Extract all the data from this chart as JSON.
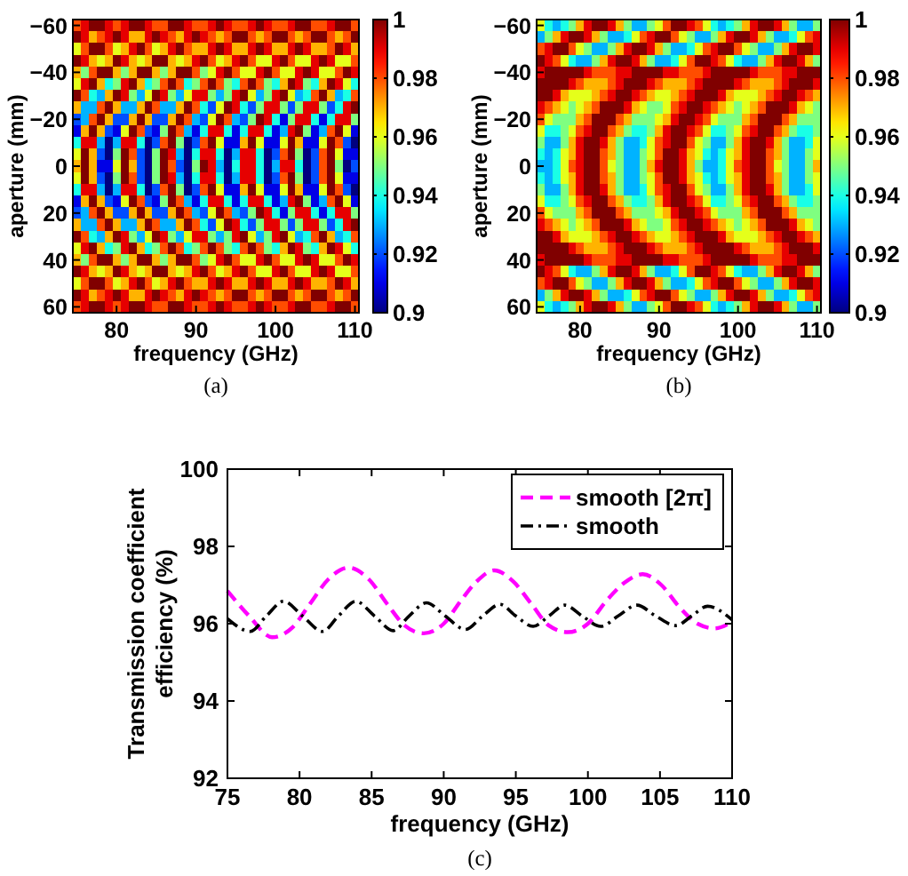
{
  "chart_data": [
    {
      "type": "heatmap",
      "xlabel": "frequency (GHz)",
      "ylabel": "aperture (mm)",
      "annotations": [
        "(a)"
      ],
      "categories": [
        null,
        null,
        null,
        null,
        null,
        "80",
        null,
        null,
        null,
        null,
        null,
        null,
        null,
        null,
        null,
        "90",
        null,
        null,
        null,
        null,
        null,
        null,
        null,
        null,
        null,
        "100",
        null,
        null,
        null,
        null,
        null,
        null,
        null,
        null,
        null,
        "110"
      ],
      "y_categories": [
        "−60",
        null,
        null,
        null,
        "−40",
        null,
        null,
        null,
        "−20",
        null,
        null,
        null,
        "0",
        null,
        null,
        null,
        "20",
        null,
        null,
        null,
        "40",
        null,
        null,
        null,
        "60"
      ],
      "clim": [
        0.9,
        1
      ],
      "cticks": [
        0.9,
        0.92,
        0.94,
        0.96,
        0.98,
        1
      ],
      "cells": [
        [
          0.98,
          0.99,
          1,
          1,
          0.99,
          0.98,
          0.99,
          1,
          1,
          0.99,
          0.98,
          0.98,
          1,
          1,
          0.99,
          0.98,
          0.98,
          0.99,
          1,
          0.99,
          0.98,
          0.98,
          0.99,
          1,
          0.99,
          0.98,
          0.98,
          0.99,
          1,
          1,
          0.98,
          0.98,
          0.99,
          1,
          1,
          0.98
        ],
        [
          1,
          0.99,
          0.97,
          0.98,
          0.99,
          1,
          0.99,
          0.97,
          0.97,
          0.99,
          1,
          0.99,
          0.98,
          0.97,
          0.99,
          1,
          0.99,
          0.98,
          0.97,
          0.98,
          1,
          1,
          0.98,
          0.97,
          0.98,
          1,
          1,
          0.98,
          0.97,
          0.98,
          1,
          1,
          0.98,
          0.97,
          0.98,
          1
        ],
        [
          0.96,
          0.98,
          1,
          1,
          0.98,
          0.96,
          0.97,
          0.99,
          1,
          0.98,
          0.96,
          0.97,
          0.99,
          1,
          0.98,
          0.97,
          0.97,
          0.99,
          1,
          0.99,
          0.97,
          0.97,
          0.99,
          1,
          0.99,
          0.97,
          0.97,
          0.99,
          1,
          0.99,
          0.97,
          0.97,
          0.98,
          1,
          0.99,
          0.97
        ],
        [
          1,
          0.99,
          0.97,
          0.96,
          0.97,
          1,
          0.99,
          0.97,
          0.96,
          0.97,
          1,
          1,
          0.97,
          0.96,
          0.97,
          0.99,
          1,
          0.98,
          0.96,
          0.97,
          0.99,
          1,
          0.98,
          0.96,
          0.96,
          0.99,
          1,
          0.98,
          0.96,
          0.96,
          0.99,
          1,
          0.99,
          0.96,
          0.96,
          0.98
        ],
        [
          0.97,
          0.95,
          0.98,
          1,
          1,
          0.97,
          0.95,
          0.97,
          1,
          1,
          0.97,
          0.95,
          0.97,
          1,
          1,
          0.98,
          0.95,
          0.96,
          0.99,
          1,
          0.98,
          0.96,
          0.96,
          0.99,
          1,
          0.98,
          0.96,
          0.96,
          0.99,
          1,
          0.99,
          0.96,
          0.96,
          0.98,
          1,
          0.99
        ],
        [
          0.96,
          0.99,
          1,
          0.97,
          0.94,
          0.95,
          0.99,
          1,
          0.97,
          0.94,
          0.95,
          0.98,
          1,
          0.98,
          0.94,
          0.95,
          0.98,
          1,
          0.98,
          0.95,
          0.94,
          0.98,
          1,
          0.98,
          0.95,
          0.94,
          0.97,
          1,
          0.99,
          0.95,
          0.94,
          0.97,
          1,
          0.99,
          0.96,
          0.94
        ],
        [
          1,
          0.98,
          0.94,
          0.93,
          0.97,
          1,
          0.99,
          0.95,
          0.93,
          0.96,
          1,
          0.99,
          0.95,
          0.93,
          0.96,
          0.99,
          0.99,
          0.95,
          0.93,
          0.95,
          0.99,
          1,
          0.96,
          0.93,
          0.95,
          0.99,
          1,
          0.96,
          0.93,
          0.94,
          0.98,
          1,
          0.97,
          0.93,
          0.94,
          0.98
        ],
        [
          0.97,
          0.93,
          0.93,
          0.98,
          1,
          0.97,
          0.93,
          0.93,
          0.97,
          1,
          0.98,
          0.93,
          0.93,
          0.97,
          1,
          0.98,
          0.94,
          0.92,
          0.96,
          1,
          0.99,
          0.94,
          0.92,
          0.95,
          0.99,
          0.99,
          0.95,
          0.92,
          0.95,
          0.99,
          0.99,
          0.95,
          0.92,
          0.94,
          0.99,
          1
        ],
        [
          0.92,
          0.93,
          0.98,
          1,
          0.97,
          0.92,
          0.92,
          0.97,
          1,
          0.97,
          0.92,
          0.92,
          0.97,
          1,
          0.98,
          0.93,
          0.92,
          0.96,
          1,
          0.98,
          0.93,
          0.92,
          0.95,
          1,
          0.99,
          0.94,
          0.91,
          0.95,
          0.99,
          0.99,
          0.94,
          0.91,
          0.94,
          0.99,
          0.99,
          0.95
        ],
        [
          0.91,
          0.97,
          1,
          0.97,
          0.92,
          0.91,
          0.96,
          1,
          0.98,
          0.92,
          0.91,
          0.95,
          1,
          0.98,
          0.93,
          0.91,
          0.94,
          0.99,
          0.99,
          0.94,
          0.91,
          0.94,
          0.99,
          0.99,
          0.94,
          0.91,
          0.93,
          0.99,
          1,
          0.95,
          0.91,
          0.93,
          0.98,
          1,
          0.96,
          0.91
        ],
        [
          0.94,
          0.99,
          0.99,
          0.93,
          0.9,
          0.93,
          0.99,
          0.99,
          0.94,
          0.9,
          0.92,
          0.98,
          1,
          0.95,
          0.9,
          0.92,
          0.98,
          1,
          0.96,
          0.91,
          0.91,
          0.97,
          1,
          0.96,
          0.91,
          0.91,
          0.96,
          1,
          0.97,
          0.91,
          0.91,
          0.96,
          1,
          0.98,
          0.92,
          0.9
        ],
        [
          0.96,
          1,
          0.97,
          0.92,
          0.9,
          0.95,
          1,
          0.98,
          0.92,
          0.9,
          0.95,
          1,
          0.99,
          0.93,
          0.9,
          0.94,
          0.99,
          0.99,
          0.94,
          0.9,
          0.93,
          0.99,
          0.99,
          0.94,
          0.9,
          0.92,
          0.98,
          1,
          0.95,
          0.9,
          0.92,
          0.98,
          1,
          0.96,
          0.91,
          0.91
        ],
        [
          0.97,
          1,
          0.97,
          0.91,
          0.91,
          0.96,
          1,
          0.97,
          0.92,
          0.9,
          0.95,
          1,
          0.98,
          0.92,
          0.9,
          0.95,
          1,
          0.99,
          0.93,
          0.9,
          0.94,
          0.99,
          0.99,
          0.94,
          0.9,
          0.93,
          0.99,
          0.99,
          0.94,
          0.9,
          0.92,
          0.98,
          1,
          0.95,
          0.9,
          0.92
        ],
        [
          0.96,
          1,
          0.97,
          0.92,
          0.9,
          0.95,
          1,
          0.98,
          0.92,
          0.9,
          0.95,
          1,
          0.99,
          0.93,
          0.9,
          0.94,
          0.99,
          0.99,
          0.94,
          0.9,
          0.93,
          0.99,
          0.99,
          0.94,
          0.9,
          0.92,
          0.98,
          1,
          0.95,
          0.9,
          0.92,
          0.98,
          1,
          0.96,
          0.91,
          0.91
        ],
        [
          0.94,
          0.99,
          0.99,
          0.93,
          0.9,
          0.93,
          0.99,
          0.99,
          0.94,
          0.9,
          0.92,
          0.98,
          1,
          0.95,
          0.9,
          0.92,
          0.98,
          1,
          0.96,
          0.91,
          0.91,
          0.97,
          1,
          0.96,
          0.91,
          0.91,
          0.96,
          1,
          0.97,
          0.91,
          0.91,
          0.96,
          1,
          0.98,
          0.92,
          0.9
        ],
        [
          0.91,
          0.97,
          1,
          0.97,
          0.92,
          0.91,
          0.96,
          1,
          0.98,
          0.92,
          0.91,
          0.95,
          1,
          0.98,
          0.93,
          0.91,
          0.94,
          0.99,
          0.99,
          0.94,
          0.91,
          0.94,
          0.99,
          0.99,
          0.94,
          0.91,
          0.93,
          0.99,
          1,
          0.95,
          0.91,
          0.93,
          0.98,
          1,
          0.96,
          0.91
        ],
        [
          0.92,
          0.93,
          0.98,
          1,
          0.97,
          0.92,
          0.92,
          0.97,
          1,
          0.97,
          0.92,
          0.92,
          0.97,
          1,
          0.98,
          0.93,
          0.92,
          0.96,
          1,
          0.98,
          0.93,
          0.92,
          0.95,
          1,
          0.99,
          0.94,
          0.91,
          0.95,
          0.99,
          0.99,
          0.94,
          0.91,
          0.94,
          0.99,
          0.99,
          0.95
        ],
        [
          0.97,
          0.93,
          0.93,
          0.98,
          1,
          0.97,
          0.93,
          0.93,
          0.97,
          1,
          0.98,
          0.93,
          0.93,
          0.97,
          1,
          0.98,
          0.94,
          0.92,
          0.96,
          1,
          0.99,
          0.94,
          0.92,
          0.95,
          0.99,
          0.99,
          0.95,
          0.92,
          0.95,
          0.99,
          0.99,
          0.95,
          0.92,
          0.94,
          0.99,
          1
        ],
        [
          1,
          0.98,
          0.94,
          0.93,
          0.97,
          1,
          0.99,
          0.95,
          0.93,
          0.96,
          1,
          0.99,
          0.95,
          0.93,
          0.96,
          0.99,
          0.99,
          0.95,
          0.93,
          0.95,
          0.99,
          1,
          0.96,
          0.93,
          0.95,
          0.99,
          1,
          0.96,
          0.93,
          0.94,
          0.98,
          1,
          0.97,
          0.93,
          0.94,
          0.98
        ],
        [
          0.96,
          0.99,
          1,
          0.97,
          0.94,
          0.95,
          0.99,
          1,
          0.97,
          0.94,
          0.95,
          0.98,
          1,
          0.98,
          0.94,
          0.95,
          0.98,
          1,
          0.98,
          0.95,
          0.94,
          0.98,
          1,
          0.98,
          0.95,
          0.94,
          0.97,
          1,
          0.99,
          0.95,
          0.94,
          0.97,
          1,
          0.99,
          0.96,
          0.94
        ],
        [
          0.97,
          0.95,
          0.98,
          1,
          1,
          0.97,
          0.95,
          0.97,
          1,
          1,
          0.97,
          0.95,
          0.97,
          1,
          1,
          0.98,
          0.95,
          0.96,
          0.99,
          1,
          0.98,
          0.96,
          0.96,
          0.99,
          1,
          0.98,
          0.96,
          0.96,
          0.99,
          1,
          0.99,
          0.96,
          0.96,
          0.98,
          1,
          0.99
        ],
        [
          1,
          0.99,
          0.97,
          0.96,
          0.97,
          1,
          0.99,
          0.97,
          0.96,
          0.97,
          1,
          1,
          0.97,
          0.96,
          0.97,
          0.99,
          1,
          0.98,
          0.96,
          0.97,
          0.99,
          1,
          0.98,
          0.96,
          0.96,
          0.99,
          1,
          0.98,
          0.96,
          0.96,
          0.99,
          1,
          0.99,
          0.96,
          0.96,
          0.98
        ],
        [
          0.96,
          0.98,
          1,
          1,
          0.98,
          0.96,
          0.97,
          0.99,
          1,
          0.98,
          0.96,
          0.97,
          0.99,
          1,
          0.98,
          0.97,
          0.97,
          0.99,
          1,
          0.99,
          0.97,
          0.97,
          0.99,
          1,
          0.99,
          0.97,
          0.97,
          0.99,
          1,
          0.99,
          0.97,
          0.97,
          0.98,
          1,
          0.99,
          0.97
        ],
        [
          1,
          0.99,
          0.97,
          0.98,
          0.99,
          1,
          0.99,
          0.97,
          0.97,
          0.99,
          1,
          0.99,
          0.98,
          0.97,
          0.99,
          1,
          0.99,
          0.98,
          0.97,
          0.98,
          1,
          1,
          0.98,
          0.97,
          0.98,
          1,
          1,
          0.98,
          0.97,
          0.98,
          1,
          1,
          0.98,
          0.97,
          0.98,
          1
        ],
        [
          0.98,
          0.99,
          1,
          1,
          0.99,
          0.98,
          0.99,
          1,
          1,
          0.99,
          0.98,
          0.98,
          1,
          1,
          0.99,
          0.98,
          0.98,
          0.99,
          1,
          0.99,
          0.98,
          0.98,
          0.99,
          1,
          0.99,
          0.98,
          0.98,
          0.99,
          1,
          1,
          0.98,
          0.98,
          0.99,
          1,
          1,
          0.98
        ]
      ]
    },
    {
      "type": "heatmap",
      "xlabel": "frequency (GHz)",
      "ylabel": "aperture (mm)",
      "annotations": [
        "(b)"
      ],
      "categories": [
        null,
        null,
        null,
        null,
        null,
        "80",
        null,
        null,
        null,
        null,
        null,
        null,
        null,
        null,
        null,
        "90",
        null,
        null,
        null,
        null,
        null,
        null,
        null,
        null,
        null,
        "100",
        null,
        null,
        null,
        null,
        null,
        null,
        null,
        null,
        null,
        "110"
      ],
      "y_categories": [
        "−60",
        null,
        null,
        null,
        "−40",
        null,
        null,
        null,
        "−20",
        null,
        null,
        null,
        "0",
        null,
        null,
        null,
        "20",
        null,
        null,
        null,
        "40",
        null,
        null,
        null,
        "60"
      ],
      "clim": [
        0.9,
        1
      ],
      "cticks": [
        0.9,
        0.92,
        0.94,
        0.96,
        0.98,
        1
      ],
      "cells": [
        [
          0.96,
          0.94,
          0.93,
          0.94,
          0.95,
          0.97,
          0.99,
          1,
          1,
          0.99,
          0.97,
          0.95,
          0.93,
          0.93,
          0.95,
          0.96,
          0.98,
          1,
          1,
          0.99,
          0.98,
          0.96,
          0.94,
          0.93,
          0.94,
          0.95,
          0.97,
          0.99,
          1,
          1,
          0.99,
          0.97,
          0.95,
          0.93,
          0.93,
          0.95
        ],
        [
          0.93,
          0.95,
          0.97,
          0.99,
          1,
          1,
          0.99,
          0.97,
          0.95,
          0.93,
          0.93,
          0.94,
          0.96,
          0.98,
          0.99,
          1,
          1,
          0.98,
          0.96,
          0.95,
          0.93,
          0.93,
          0.95,
          0.97,
          0.99,
          1,
          1,
          0.99,
          0.97,
          0.95,
          0.93,
          0.93,
          0.94,
          0.96,
          0.98,
          0.99
        ],
        [
          0.98,
          0.99,
          1,
          1,
          0.98,
          0.96,
          0.95,
          0.93,
          0.93,
          0.95,
          0.97,
          0.99,
          1,
          1,
          0.99,
          0.97,
          0.95,
          0.93,
          0.93,
          0.94,
          0.96,
          0.98,
          0.99,
          1,
          1,
          0.98,
          0.96,
          0.95,
          0.93,
          0.93,
          0.95,
          0.97,
          0.99,
          1,
          1,
          0.99
        ],
        [
          1,
          0.99,
          0.98,
          0.96,
          0.94,
          0.93,
          0.93,
          0.95,
          0.97,
          0.99,
          1,
          1,
          0.99,
          0.97,
          0.95,
          0.93,
          0.93,
          0.94,
          0.96,
          0.98,
          1,
          1,
          0.99,
          0.98,
          0.96,
          0.94,
          0.93,
          0.93,
          0.95,
          0.97,
          0.99,
          1,
          1,
          0.99,
          0.97,
          0.95
        ],
        [
          0.99,
          1,
          1,
          1,
          1,
          1,
          0.99,
          0.98,
          0.98,
          0.98,
          0.99,
          0.99,
          1,
          1,
          1,
          1,
          0.99,
          0.99,
          0.98,
          0.98,
          0.98,
          0.99,
          1,
          1,
          1,
          1,
          1,
          0.99,
          0.98,
          0.98,
          0.98,
          0.99,
          0.99,
          1,
          1,
          1
        ],
        [
          1,
          1,
          1,
          1,
          0.99,
          0.98,
          0.97,
          0.97,
          0.97,
          0.98,
          0.99,
          1,
          1,
          1,
          0.99,
          0.98,
          0.97,
          0.97,
          0.97,
          0.98,
          0.99,
          1,
          1,
          1,
          1,
          0.99,
          0.98,
          0.97,
          0.97,
          0.97,
          0.98,
          0.99,
          1,
          1,
          1,
          0.99
        ],
        [
          1,
          1,
          0.99,
          0.97,
          0.96,
          0.96,
          0.96,
          0.97,
          0.98,
          0.99,
          1,
          1,
          0.99,
          0.98,
          0.97,
          0.96,
          0.96,
          0.97,
          0.98,
          0.99,
          1,
          1,
          1,
          0.99,
          0.97,
          0.96,
          0.96,
          0.96,
          0.97,
          0.98,
          0.99,
          1,
          1,
          0.99,
          0.98,
          0.97
        ],
        [
          0.99,
          0.98,
          0.97,
          0.96,
          0.95,
          0.96,
          0.97,
          0.98,
          1,
          1,
          1,
          0.99,
          0.97,
          0.96,
          0.95,
          0.95,
          0.96,
          0.98,
          0.99,
          1,
          1,
          0.99,
          0.98,
          0.97,
          0.96,
          0.95,
          0.96,
          0.97,
          0.98,
          1,
          1,
          1,
          0.99,
          0.97,
          0.96,
          0.95
        ],
        [
          0.98,
          0.96,
          0.95,
          0.95,
          0.95,
          0.97,
          0.98,
          1,
          1,
          1,
          0.98,
          0.97,
          0.95,
          0.95,
          0.95,
          0.96,
          0.97,
          0.99,
          1,
          1,
          0.99,
          0.98,
          0.96,
          0.95,
          0.95,
          0.95,
          0.97,
          0.98,
          1,
          1,
          1,
          0.98,
          0.97,
          0.95,
          0.95,
          0.95
        ],
        [
          0.96,
          0.94,
          0.94,
          0.95,
          0.96,
          0.98,
          0.99,
          1,
          1,
          0.98,
          0.97,
          0.95,
          0.94,
          0.94,
          0.95,
          0.97,
          0.99,
          1,
          1,
          0.99,
          0.98,
          0.96,
          0.94,
          0.94,
          0.95,
          0.96,
          0.98,
          0.99,
          1,
          1,
          0.98,
          0.97,
          0.95,
          0.94,
          0.94,
          0.95
        ],
        [
          0.95,
          0.93,
          0.93,
          0.95,
          0.97,
          0.99,
          1,
          1,
          0.99,
          0.97,
          0.95,
          0.93,
          0.93,
          0.94,
          0.96,
          0.98,
          0.99,
          1,
          1,
          0.98,
          0.96,
          0.95,
          0.93,
          0.93,
          0.95,
          0.97,
          0.99,
          1,
          1,
          0.99,
          0.97,
          0.95,
          0.93,
          0.93,
          0.94,
          0.96
        ],
        [
          0.94,
          0.93,
          0.94,
          0.96,
          0.97,
          0.99,
          1,
          1,
          0.98,
          0.97,
          0.95,
          0.93,
          0.93,
          0.95,
          0.96,
          0.98,
          1,
          1,
          0.99,
          0.97,
          0.96,
          0.94,
          0.93,
          0.94,
          0.96,
          0.97,
          0.99,
          1,
          1,
          0.98,
          0.97,
          0.95,
          0.93,
          0.93,
          0.95,
          0.96
        ],
        [
          0.93,
          0.93,
          0.94,
          0.96,
          0.98,
          0.99,
          1,
          1,
          0.98,
          0.96,
          0.95,
          0.93,
          0.93,
          0.95,
          0.97,
          0.99,
          1,
          1,
          0.99,
          0.97,
          0.95,
          0.93,
          0.93,
          0.94,
          0.96,
          0.98,
          0.99,
          1,
          1,
          0.98,
          0.96,
          0.95,
          0.93,
          0.93,
          0.95,
          0.97
        ],
        [
          0.94,
          0.93,
          0.94,
          0.96,
          0.97,
          0.99,
          1,
          1,
          0.98,
          0.97,
          0.95,
          0.93,
          0.93,
          0.95,
          0.96,
          0.98,
          1,
          1,
          0.99,
          0.97,
          0.96,
          0.94,
          0.93,
          0.94,
          0.96,
          0.97,
          0.99,
          1,
          1,
          0.98,
          0.97,
          0.95,
          0.93,
          0.93,
          0.95,
          0.96
        ],
        [
          0.95,
          0.93,
          0.93,
          0.95,
          0.97,
          0.99,
          1,
          1,
          0.99,
          0.97,
          0.95,
          0.93,
          0.93,
          0.94,
          0.96,
          0.98,
          0.99,
          1,
          1,
          0.98,
          0.96,
          0.95,
          0.93,
          0.93,
          0.95,
          0.97,
          0.99,
          1,
          1,
          0.99,
          0.97,
          0.95,
          0.93,
          0.93,
          0.94,
          0.96
        ],
        [
          0.96,
          0.94,
          0.94,
          0.95,
          0.96,
          0.98,
          0.99,
          1,
          1,
          0.98,
          0.97,
          0.95,
          0.94,
          0.94,
          0.95,
          0.97,
          0.99,
          1,
          1,
          0.99,
          0.98,
          0.96,
          0.94,
          0.94,
          0.95,
          0.96,
          0.98,
          0.99,
          1,
          1,
          0.98,
          0.97,
          0.95,
          0.94,
          0.94,
          0.95
        ],
        [
          0.98,
          0.96,
          0.95,
          0.95,
          0.95,
          0.97,
          0.98,
          1,
          1,
          1,
          0.98,
          0.97,
          0.95,
          0.95,
          0.95,
          0.96,
          0.97,
          0.99,
          1,
          1,
          0.99,
          0.98,
          0.96,
          0.95,
          0.95,
          0.95,
          0.97,
          0.98,
          1,
          1,
          1,
          0.98,
          0.97,
          0.95,
          0.95,
          0.95
        ],
        [
          0.99,
          0.98,
          0.97,
          0.96,
          0.95,
          0.96,
          0.97,
          0.98,
          1,
          1,
          1,
          0.99,
          0.97,
          0.96,
          0.95,
          0.95,
          0.96,
          0.98,
          0.99,
          1,
          1,
          0.99,
          0.98,
          0.97,
          0.96,
          0.95,
          0.96,
          0.97,
          0.98,
          1,
          1,
          1,
          0.99,
          0.97,
          0.96,
          0.95
        ],
        [
          1,
          1,
          0.99,
          0.97,
          0.96,
          0.96,
          0.96,
          0.97,
          0.98,
          0.99,
          1,
          1,
          0.99,
          0.98,
          0.97,
          0.96,
          0.96,
          0.97,
          0.98,
          0.99,
          1,
          1,
          1,
          0.99,
          0.97,
          0.96,
          0.96,
          0.96,
          0.97,
          0.98,
          0.99,
          1,
          1,
          0.99,
          0.98,
          0.97
        ],
        [
          1,
          1,
          1,
          1,
          0.99,
          0.98,
          0.97,
          0.97,
          0.97,
          0.98,
          0.99,
          1,
          1,
          1,
          0.99,
          0.98,
          0.97,
          0.97,
          0.97,
          0.98,
          0.99,
          1,
          1,
          1,
          1,
          0.99,
          0.98,
          0.97,
          0.97,
          0.97,
          0.98,
          0.99,
          1,
          1,
          1,
          0.99
        ],
        [
          0.99,
          1,
          1,
          1,
          1,
          1,
          0.99,
          0.98,
          0.98,
          0.98,
          0.99,
          0.99,
          1,
          1,
          1,
          1,
          0.99,
          0.99,
          0.98,
          0.98,
          0.98,
          0.99,
          1,
          1,
          1,
          1,
          1,
          0.99,
          0.98,
          0.98,
          0.98,
          0.99,
          0.99,
          1,
          1,
          1
        ],
        [
          1,
          0.99,
          0.98,
          0.96,
          0.94,
          0.93,
          0.93,
          0.95,
          0.97,
          0.99,
          1,
          1,
          0.99,
          0.97,
          0.95,
          0.93,
          0.93,
          0.94,
          0.96,
          0.98,
          1,
          1,
          0.99,
          0.98,
          0.96,
          0.94,
          0.93,
          0.93,
          0.95,
          0.97,
          0.99,
          1,
          1,
          0.99,
          0.97,
          0.95
        ],
        [
          0.98,
          0.99,
          1,
          1,
          0.98,
          0.96,
          0.95,
          0.93,
          0.93,
          0.95,
          0.97,
          0.99,
          1,
          1,
          0.99,
          0.97,
          0.95,
          0.93,
          0.93,
          0.94,
          0.96,
          0.98,
          0.99,
          1,
          1,
          0.98,
          0.96,
          0.95,
          0.93,
          0.93,
          0.95,
          0.97,
          0.99,
          1,
          1,
          0.99
        ],
        [
          0.93,
          0.95,
          0.97,
          0.99,
          1,
          1,
          0.99,
          0.97,
          0.95,
          0.93,
          0.93,
          0.94,
          0.96,
          0.98,
          0.99,
          1,
          1,
          0.98,
          0.96,
          0.95,
          0.93,
          0.93,
          0.95,
          0.97,
          0.99,
          1,
          1,
          0.99,
          0.97,
          0.95,
          0.93,
          0.93,
          0.94,
          0.96,
          0.98,
          0.99
        ],
        [
          0.96,
          0.94,
          0.93,
          0.94,
          0.95,
          0.97,
          0.99,
          1,
          1,
          0.99,
          0.97,
          0.95,
          0.93,
          0.93,
          0.95,
          0.96,
          0.98,
          1,
          1,
          0.99,
          0.98,
          0.96,
          0.94,
          0.93,
          0.94,
          0.95,
          0.97,
          0.99,
          1,
          1,
          0.99,
          0.97,
          0.95,
          0.93,
          0.93,
          0.95
        ]
      ]
    },
    {
      "type": "line",
      "xlabel": "frequency (GHz)",
      "ylabel": "Transmission coefficient\nefficiency (%)",
      "annotations": [
        "(c)"
      ],
      "xlim": [
        75,
        110
      ],
      "xticks": [
        75,
        80,
        85,
        90,
        95,
        100,
        105,
        110
      ],
      "ylim": [
        92,
        100
      ],
      "yticks": [
        92,
        94,
        96,
        98,
        100
      ],
      "legend": "top right",
      "series": [
        {
          "name": "smooth [2π]",
          "color": "#ff00ff",
          "line_style": "dashed",
          "x": [
            75,
            76.5,
            78.1,
            79.5,
            80.7,
            82,
            83.4,
            84.8,
            86.1,
            87.3,
            88.6,
            90,
            91.2,
            92.3,
            93.5,
            94.8,
            96.1,
            97.3,
            98.6,
            100,
            101.3,
            102.5,
            103.8,
            105.1,
            106.3,
            107.6,
            108.8,
            110
          ],
          "values": [
            96.85,
            96.2,
            95.65,
            95.9,
            96.5,
            97.15,
            97.45,
            97.15,
            96.5,
            95.95,
            95.75,
            96,
            96.6,
            97.1,
            97.38,
            97.1,
            96.5,
            95.95,
            95.78,
            96,
            96.6,
            97.05,
            97.28,
            97,
            96.45,
            96,
            95.88,
            96.05
          ]
        },
        {
          "name": "smooth",
          "color": "#000000",
          "line_style": "dashdot",
          "x": [
            75,
            76.6,
            77.7,
            78.9,
            80.2,
            81.6,
            82.7,
            83.9,
            85.2,
            86.5,
            87.6,
            88.8,
            90.1,
            91.5,
            92.7,
            93.9,
            95,
            96.2,
            97.3,
            98.4,
            99.6,
            100.9,
            102.1,
            103.4,
            104.7,
            106.1,
            107.2,
            108.3,
            110
          ],
          "values": [
            96.13,
            95.8,
            96.2,
            96.58,
            96.2,
            95.8,
            96.2,
            96.58,
            96.2,
            95.82,
            96.2,
            96.54,
            96.2,
            95.85,
            96.2,
            96.5,
            96.2,
            95.93,
            96.2,
            96.48,
            96.2,
            95.93,
            96.2,
            96.48,
            96.2,
            95.95,
            96.2,
            96.45,
            96.1
          ]
        }
      ]
    }
  ]
}
